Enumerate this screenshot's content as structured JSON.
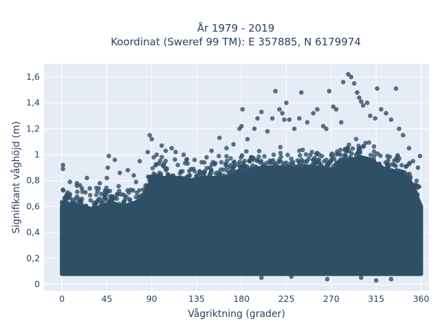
{
  "chart_data": {
    "type": "scatter",
    "title_line1": "År 1979 - 2019",
    "title_line2": "Koordinat (Sweref 99 TM): E 357885, N 6179974",
    "xlabel": "Vågriktning (grader)",
    "ylabel": "Signifikant våghöjd (m)",
    "xlim": [
      -18,
      368
    ],
    "ylim": [
      -0.05,
      1.7
    ],
    "xticks": [
      0,
      45,
      90,
      135,
      180,
      225,
      270,
      315,
      360
    ],
    "xtick_labels": [
      "0",
      "45",
      "90",
      "135",
      "180",
      "225",
      "270",
      "315",
      "360"
    ],
    "yticks": [
      0,
      0.2,
      0.4,
      0.6,
      0.8,
      1,
      1.2,
      1.4,
      1.6
    ],
    "ytick_labels": [
      "0",
      "0,2",
      "0,4",
      "0,6",
      "0,8",
      "1",
      "1,2",
      "1,4",
      "1,6"
    ],
    "grid": true,
    "legend": "none",
    "marker_color": "#2f4f66",
    "background_color": "#e5ecf6",
    "dense_band": {
      "x": [
        0,
        10,
        20,
        30,
        40,
        50,
        60,
        70,
        80,
        90,
        100,
        110,
        120,
        130,
        140,
        150,
        160,
        170,
        180,
        190,
        200,
        210,
        220,
        230,
        240,
        250,
        260,
        270,
        280,
        290,
        300,
        310,
        320,
        330,
        340,
        350,
        360
      ],
      "y_min": [
        0.08,
        0.08,
        0.08,
        0.08,
        0.08,
        0.08,
        0.08,
        0.08,
        0.08,
        0.08,
        0.08,
        0.08,
        0.08,
        0.08,
        0.08,
        0.08,
        0.08,
        0.08,
        0.08,
        0.08,
        0.08,
        0.08,
        0.08,
        0.08,
        0.08,
        0.08,
        0.08,
        0.08,
        0.08,
        0.08,
        0.08,
        0.08,
        0.08,
        0.08,
        0.08,
        0.08,
        0.08
      ],
      "y_max": [
        0.6,
        0.6,
        0.6,
        0.58,
        0.6,
        0.62,
        0.6,
        0.62,
        0.65,
        0.8,
        0.82,
        0.82,
        0.82,
        0.8,
        0.82,
        0.82,
        0.82,
        0.84,
        0.86,
        0.88,
        0.9,
        0.9,
        0.9,
        0.9,
        0.88,
        0.9,
        0.9,
        0.88,
        0.92,
        0.96,
        0.98,
        0.96,
        0.9,
        0.88,
        0.85,
        0.78,
        0.6
      ]
    },
    "outliers": [
      {
        "x": 1,
        "y": 0.92
      },
      {
        "x": 1,
        "y": 0.89
      },
      {
        "x": 1,
        "y": 0.73
      },
      {
        "x": 8,
        "y": 0.79
      },
      {
        "x": 15,
        "y": 0.78
      },
      {
        "x": 20,
        "y": 0.74
      },
      {
        "x": 25,
        "y": 0.82
      },
      {
        "x": 28,
        "y": 0.74
      },
      {
        "x": 38,
        "y": 0.78
      },
      {
        "x": 45,
        "y": 0.82
      },
      {
        "x": 46,
        "y": 0.9
      },
      {
        "x": 47,
        "y": 0.99
      },
      {
        "x": 53,
        "y": 0.96
      },
      {
        "x": 58,
        "y": 0.86
      },
      {
        "x": 66,
        "y": 0.88
      },
      {
        "x": 72,
        "y": 0.84
      },
      {
        "x": 78,
        "y": 0.95
      },
      {
        "x": 86,
        "y": 1.02
      },
      {
        "x": 88,
        "y": 1.15
      },
      {
        "x": 90,
        "y": 1.12
      },
      {
        "x": 92,
        "y": 0.98
      },
      {
        "x": 95,
        "y": 1.0
      },
      {
        "x": 100,
        "y": 1.07
      },
      {
        "x": 104,
        "y": 1.03
      },
      {
        "x": 110,
        "y": 1.05
      },
      {
        "x": 114,
        "y": 1.02
      },
      {
        "x": 122,
        "y": 1.0
      },
      {
        "x": 133,
        "y": 0.96
      },
      {
        "x": 145,
        "y": 0.98
      },
      {
        "x": 150,
        "y": 1.03
      },
      {
        "x": 158,
        "y": 1.13
      },
      {
        "x": 165,
        "y": 1.05
      },
      {
        "x": 172,
        "y": 1.08
      },
      {
        "x": 178,
        "y": 1.2
      },
      {
        "x": 180,
        "y": 1.22
      },
      {
        "x": 181,
        "y": 1.35
      },
      {
        "x": 186,
        "y": 1.12
      },
      {
        "x": 193,
        "y": 1.2
      },
      {
        "x": 196,
        "y": 1.28
      },
      {
        "x": 200,
        "y": 1.33
      },
      {
        "x": 206,
        "y": 1.18
      },
      {
        "x": 211,
        "y": 1.28
      },
      {
        "x": 214,
        "y": 1.49
      },
      {
        "x": 218,
        "y": 1.35
      },
      {
        "x": 221,
        "y": 1.32
      },
      {
        "x": 223,
        "y": 1.27
      },
      {
        "x": 225,
        "y": 1.4
      },
      {
        "x": 228,
        "y": 1.27
      },
      {
        "x": 233,
        "y": 1.2
      },
      {
        "x": 238,
        "y": 1.28
      },
      {
        "x": 240,
        "y": 1.48
      },
      {
        "x": 246,
        "y": 1.25
      },
      {
        "x": 252,
        "y": 1.32
      },
      {
        "x": 256,
        "y": 1.35
      },
      {
        "x": 262,
        "y": 1.22
      },
      {
        "x": 265,
        "y": 1.2
      },
      {
        "x": 268,
        "y": 1.49
      },
      {
        "x": 272,
        "y": 1.37
      },
      {
        "x": 275,
        "y": 1.35
      },
      {
        "x": 280,
        "y": 1.25
      },
      {
        "x": 282,
        "y": 1.56
      },
      {
        "x": 287,
        "y": 1.62
      },
      {
        "x": 290,
        "y": 1.6
      },
      {
        "x": 293,
        "y": 1.55
      },
      {
        "x": 296,
        "y": 1.48
      },
      {
        "x": 298,
        "y": 1.44
      },
      {
        "x": 300,
        "y": 1.41
      },
      {
        "x": 302,
        "y": 1.38
      },
      {
        "x": 306,
        "y": 1.4
      },
      {
        "x": 309,
        "y": 1.3
      },
      {
        "x": 314,
        "y": 1.28
      },
      {
        "x": 316,
        "y": 1.51
      },
      {
        "x": 320,
        "y": 1.35
      },
      {
        "x": 325,
        "y": 1.32
      },
      {
        "x": 330,
        "y": 1.27
      },
      {
        "x": 335,
        "y": 1.51
      },
      {
        "x": 338,
        "y": 1.2
      },
      {
        "x": 342,
        "y": 1.15
      },
      {
        "x": 348,
        "y": 1.05
      },
      {
        "x": 352,
        "y": 0.95
      },
      {
        "x": 357,
        "y": 0.9
      },
      {
        "x": 359,
        "y": 0.99
      },
      {
        "x": 200,
        "y": 0.05
      },
      {
        "x": 230,
        "y": 0.06
      },
      {
        "x": 266,
        "y": 0.04
      },
      {
        "x": 300,
        "y": 0.05
      },
      {
        "x": 315,
        "y": 0.03
      },
      {
        "x": 330,
        "y": 0.04
      }
    ]
  }
}
